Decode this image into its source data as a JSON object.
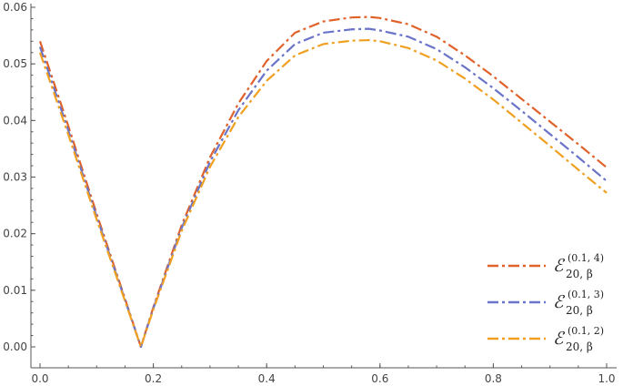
{
  "chart_data": {
    "type": "line",
    "title": "",
    "xlabel": "",
    "ylabel": "",
    "xlim": [
      0,
      1
    ],
    "ylim": [
      0,
      0.06
    ],
    "grid": false,
    "legend_position": "bottom-right",
    "x_ticks": [
      "0.0",
      "0.2",
      "0.4",
      "0.6",
      "0.8",
      "1.0"
    ],
    "y_ticks": [
      "0.00",
      "0.01",
      "0.02",
      "0.03",
      "0.04",
      "0.05",
      "0.06"
    ],
    "x_tick_values": [
      0,
      0.2,
      0.4,
      0.6,
      0.8,
      1.0
    ],
    "y_tick_values": [
      0,
      0.01,
      0.02,
      0.03,
      0.04,
      0.05,
      0.06
    ],
    "series": [
      {
        "base": "ℰ",
        "sub": "20, β",
        "sup": "(0.1, 4)",
        "color": "#e0622a",
        "dash": "12,4,3,4",
        "x": [
          0,
          0.05,
          0.1,
          0.15,
          0.178,
          0.2,
          0.25,
          0.3,
          0.35,
          0.4,
          0.45,
          0.5,
          0.55,
          0.58,
          0.6,
          0.65,
          0.7,
          0.75,
          0.8,
          0.85,
          0.9,
          0.95,
          1.0
        ],
        "y": [
          0.054,
          0.039,
          0.0235,
          0.0085,
          0.0,
          0.007,
          0.0215,
          0.0335,
          0.043,
          0.0505,
          0.0555,
          0.0575,
          0.0582,
          0.0583,
          0.0581,
          0.057,
          0.0548,
          0.0515,
          0.0478,
          0.0438,
          0.0398,
          0.0358,
          0.0317
        ]
      },
      {
        "base": "ℰ",
        "sub": "20, β",
        "sup": "(0.1, 3)",
        "color": "#6a74c8",
        "dash": "12,4,3,4",
        "x": [
          0,
          0.05,
          0.1,
          0.15,
          0.178,
          0.2,
          0.25,
          0.3,
          0.35,
          0.4,
          0.45,
          0.5,
          0.55,
          0.58,
          0.6,
          0.65,
          0.7,
          0.75,
          0.8,
          0.85,
          0.9,
          0.95,
          1.0
        ],
        "y": [
          0.053,
          0.0382,
          0.023,
          0.0083,
          0.0,
          0.0068,
          0.021,
          0.0327,
          0.0418,
          0.0488,
          0.0535,
          0.0555,
          0.0561,
          0.0562,
          0.0559,
          0.0548,
          0.0526,
          0.0494,
          0.0457,
          0.0417,
          0.0376,
          0.0335,
          0.0293
        ]
      },
      {
        "base": "ℰ",
        "sub": "20, β",
        "sup": "(0.1, 2)",
        "color": "#f0a020",
        "dash": "12,4,3,4",
        "x": [
          0,
          0.05,
          0.1,
          0.15,
          0.178,
          0.2,
          0.25,
          0.3,
          0.35,
          0.4,
          0.45,
          0.5,
          0.55,
          0.58,
          0.6,
          0.65,
          0.7,
          0.75,
          0.8,
          0.85,
          0.9,
          0.95,
          1.0
        ],
        "y": [
          0.052,
          0.0375,
          0.0225,
          0.0081,
          0.0,
          0.0066,
          0.0205,
          0.0318,
          0.0406,
          0.047,
          0.0515,
          0.0535,
          0.0541,
          0.0542,
          0.054,
          0.0528,
          0.0506,
          0.0474,
          0.0437,
          0.0396,
          0.0355,
          0.0313,
          0.0272
        ]
      }
    ]
  }
}
